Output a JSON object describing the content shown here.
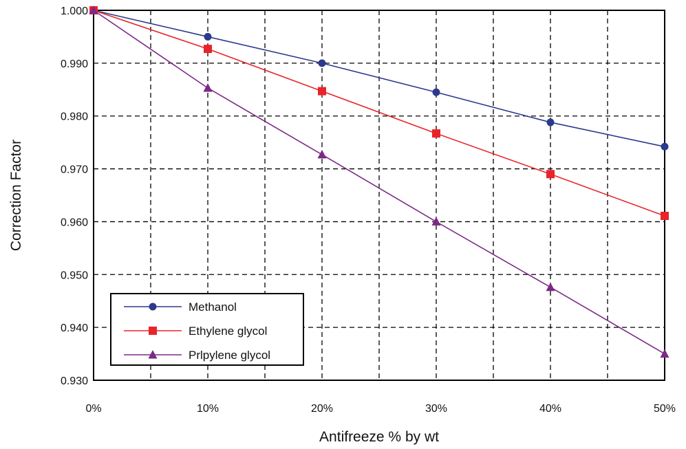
{
  "chart_data": {
    "type": "line",
    "title": "",
    "xlabel": "Antifreeze % by wt",
    "ylabel": "Correction Factor",
    "x": [
      0,
      10,
      20,
      30,
      40,
      50
    ],
    "xticks": [
      "0%",
      "10%",
      "20%",
      "30%",
      "40%",
      "50%"
    ],
    "xlim": [
      0,
      50
    ],
    "ylim": [
      0.93,
      1.0
    ],
    "yticks": [
      "0.930",
      "0.940",
      "0.950",
      "0.960",
      "0.970",
      "0.980",
      "0.990",
      "1.000"
    ],
    "grid": true,
    "legend_position": "bottom-left",
    "series": [
      {
        "name": "Methanol",
        "marker": "circle",
        "color": "#2b3a8c",
        "values": [
          1.0,
          0.995,
          0.99,
          0.9845,
          0.9788,
          0.9742
        ]
      },
      {
        "name": "Ethylene glycol",
        "marker": "square",
        "color": "#e8242a",
        "values": [
          1.0,
          0.9927,
          0.9847,
          0.9767,
          0.969,
          0.9611
        ]
      },
      {
        "name": "Prlpylene glycol",
        "marker": "triangle",
        "color": "#7b2a85",
        "values": [
          1.0,
          0.9853,
          0.9727,
          0.96,
          0.9476,
          0.935
        ]
      }
    ]
  }
}
